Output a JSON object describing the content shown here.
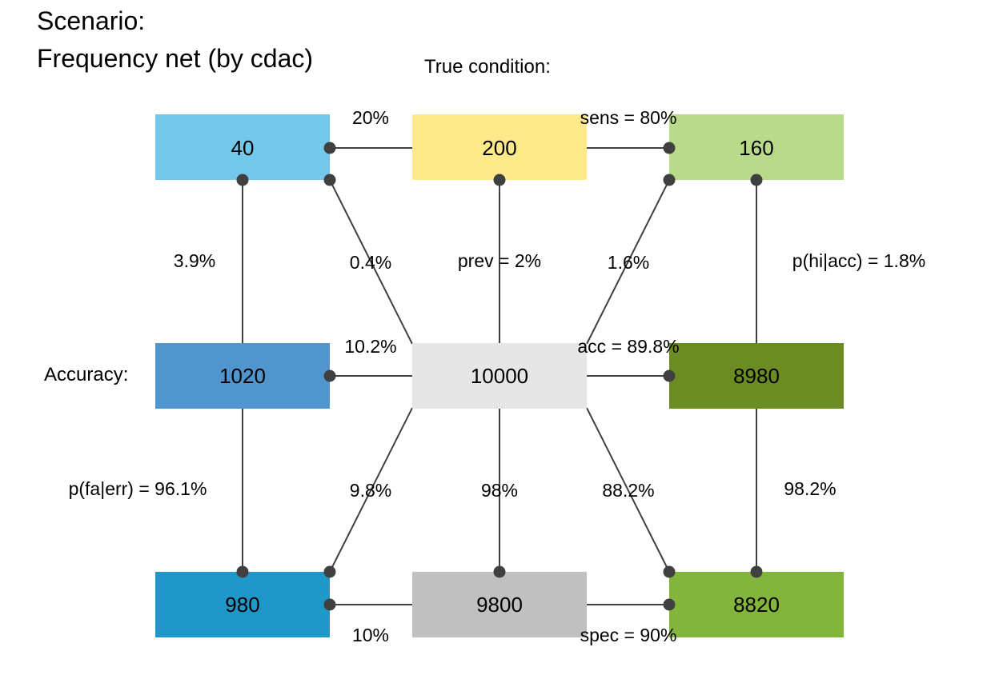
{
  "title": {
    "line1": "Scenario:",
    "line2": "Frequency net (by cdac)"
  },
  "top_label": "True condition:",
  "side_label": "Accuracy:",
  "colors": {
    "hi": "#B8DA8A",
    "cond_true": "#FEE98B",
    "mi": "#73C7EB",
    "dec_err": "#5195CE",
    "population": "#E6E6E6",
    "dec_cor": "#6A8C22",
    "fa": "#1F98C9",
    "cond_false": "#C0C0C0",
    "cr": "#83B43B",
    "line": "#404040"
  },
  "nodes": {
    "mi": "40",
    "cond_true": "200",
    "hi": "160",
    "dec_err": "1020",
    "population": "10000",
    "dec_cor": "8980",
    "fa": "980",
    "cond_false": "9800",
    "cr": "8820"
  },
  "edges": {
    "mi_share": "20%",
    "sens": "sens = 80%",
    "err_mi": "3.9%",
    "pop_mi": "0.4%",
    "prev": "prev = 2%",
    "pop_hi": "1.6%",
    "ppv_acc": "p(hi|acc) = 1.8%",
    "err": "10.2%",
    "acc": "acc = 89.8%",
    "err_fa": "p(fa|err) = 96.1%",
    "pop_fa": "9.8%",
    "cond_false_share": "98%",
    "pop_cr": "88.2%",
    "acc_cr": "98.2%",
    "fa_share": "10%",
    "spec": "spec = 90%"
  }
}
